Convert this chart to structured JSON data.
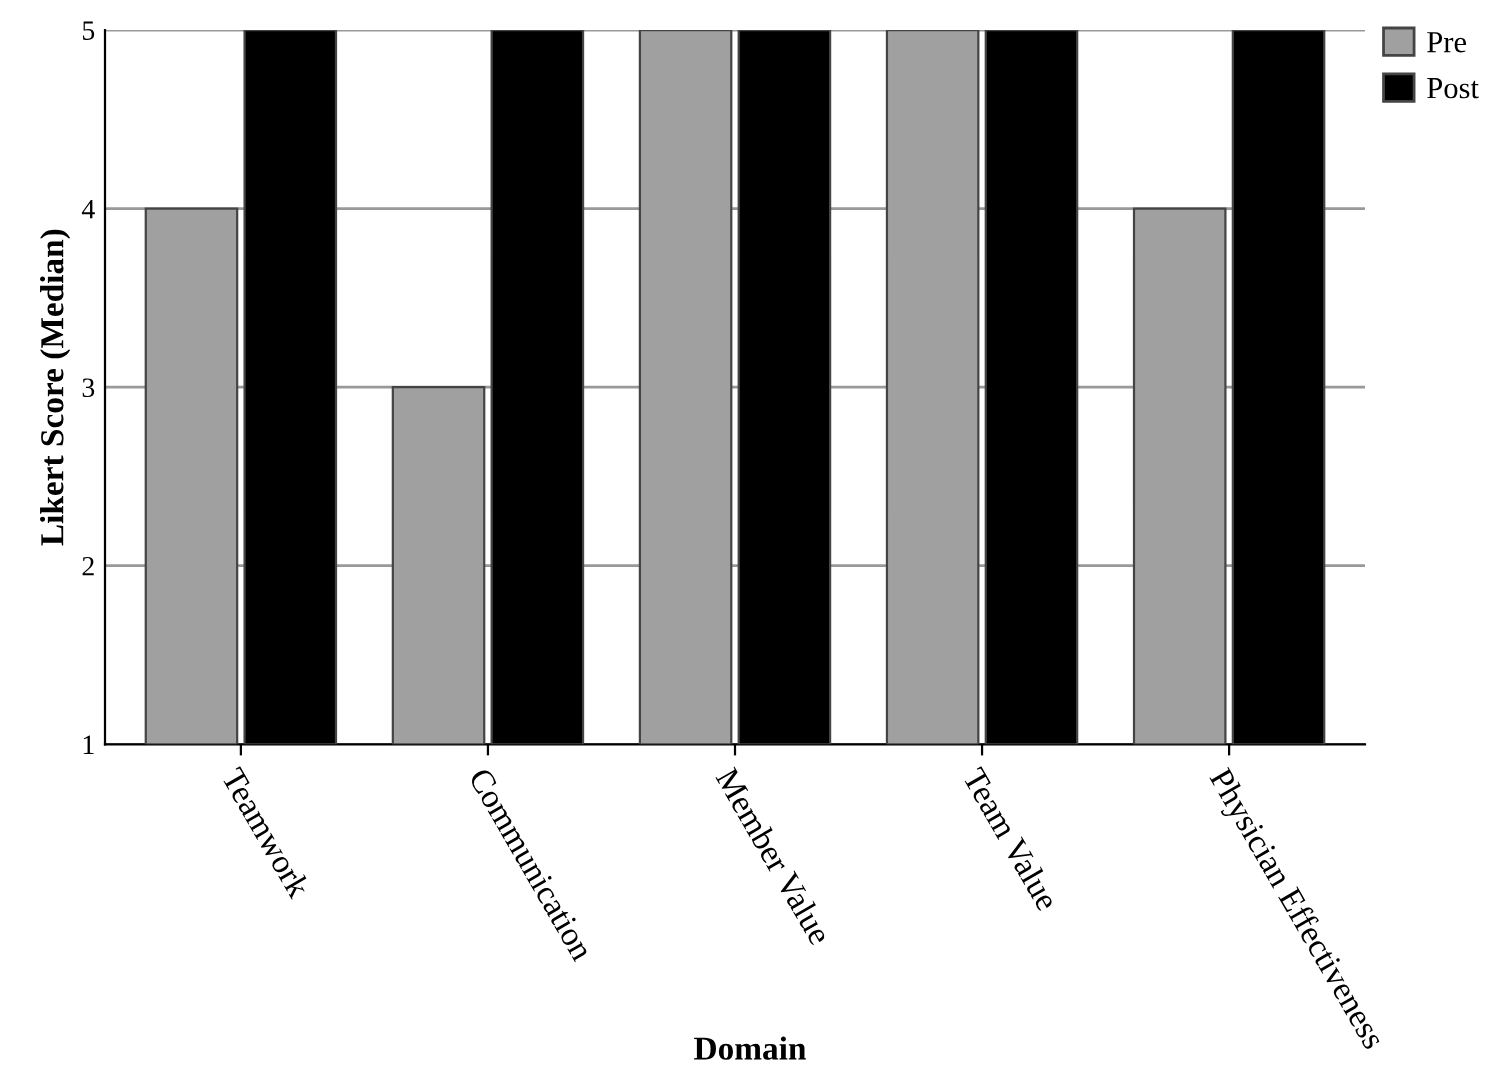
{
  "chart_data": {
    "type": "bar",
    "xlabel": "Domain",
    "ylabel": "Likert Score (Median)",
    "categories": [
      "Teamwork",
      "Communication",
      "Member Value",
      "Team Value",
      "Physician Effectiveness"
    ],
    "series": [
      {
        "name": "Pre",
        "color": "#a0a0a0",
        "values": [
          4,
          3,
          5,
          5,
          4
        ]
      },
      {
        "name": "Post",
        "color": "#000000",
        "values": [
          5,
          5,
          5,
          5,
          5
        ]
      }
    ],
    "ylim": [
      1,
      5
    ],
    "yticks": [
      1,
      2,
      3,
      4,
      5
    ],
    "grid": "y",
    "legend": "top right"
  }
}
